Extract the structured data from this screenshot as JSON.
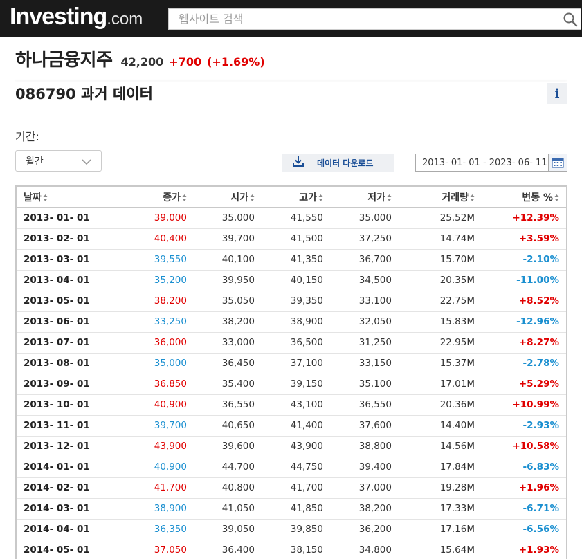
{
  "header": {
    "logo_main": "Investing",
    "logo_suffix": ".com",
    "search_placeholder": "웹사이트 검색",
    "search_icon": "search-icon"
  },
  "instrument": {
    "name": "하나금융지주",
    "price": "42,200",
    "change": "+700",
    "change_pct": "(+1.69%)"
  },
  "section": {
    "title": "086790 과거 데이터",
    "info_label": "i"
  },
  "controls": {
    "period_label": "기간:",
    "period_value": "월간",
    "download_label": "데이터 다운로드",
    "date_range": "2013- 01- 01 - 2023- 06- 11"
  },
  "colors": {
    "up": "#e00000",
    "down": "#1a8fd0",
    "link": "#1a4e96"
  },
  "table": {
    "columns": [
      "날짜",
      "종가",
      "시가",
      "고가",
      "저가",
      "거래량",
      "변동 %"
    ],
    "rows": [
      {
        "date": "2013- 01- 01",
        "close": "39,000",
        "open": "35,000",
        "high": "41,550",
        "low": "35,000",
        "volume": "25.52M",
        "change": "+12.39%",
        "dir": "up"
      },
      {
        "date": "2013- 02- 01",
        "close": "40,400",
        "open": "39,700",
        "high": "41,500",
        "low": "37,250",
        "volume": "14.74M",
        "change": "+3.59%",
        "dir": "up"
      },
      {
        "date": "2013- 03- 01",
        "close": "39,550",
        "open": "40,100",
        "high": "41,350",
        "low": "36,700",
        "volume": "15.70M",
        "change": "-2.10%",
        "dir": "down"
      },
      {
        "date": "2013- 04- 01",
        "close": "35,200",
        "open": "39,950",
        "high": "40,150",
        "low": "34,500",
        "volume": "20.35M",
        "change": "-11.00%",
        "dir": "down"
      },
      {
        "date": "2013- 05- 01",
        "close": "38,200",
        "open": "35,050",
        "high": "39,350",
        "low": "33,100",
        "volume": "22.75M",
        "change": "+8.52%",
        "dir": "up"
      },
      {
        "date": "2013- 06- 01",
        "close": "33,250",
        "open": "38,200",
        "high": "38,900",
        "low": "32,050",
        "volume": "15.83M",
        "change": "-12.96%",
        "dir": "down"
      },
      {
        "date": "2013- 07- 01",
        "close": "36,000",
        "open": "33,000",
        "high": "36,500",
        "low": "31,250",
        "volume": "22.95M",
        "change": "+8.27%",
        "dir": "up"
      },
      {
        "date": "2013- 08- 01",
        "close": "35,000",
        "open": "36,450",
        "high": "37,100",
        "low": "33,150",
        "volume": "15.37M",
        "change": "-2.78%",
        "dir": "down"
      },
      {
        "date": "2013- 09- 01",
        "close": "36,850",
        "open": "35,400",
        "high": "39,150",
        "low": "35,100",
        "volume": "17.01M",
        "change": "+5.29%",
        "dir": "up"
      },
      {
        "date": "2013- 10- 01",
        "close": "40,900",
        "open": "36,550",
        "high": "43,100",
        "low": "36,550",
        "volume": "20.36M",
        "change": "+10.99%",
        "dir": "up"
      },
      {
        "date": "2013- 11- 01",
        "close": "39,700",
        "open": "40,650",
        "high": "41,400",
        "low": "37,600",
        "volume": "14.40M",
        "change": "-2.93%",
        "dir": "down"
      },
      {
        "date": "2013- 12- 01",
        "close": "43,900",
        "open": "39,600",
        "high": "43,900",
        "low": "38,800",
        "volume": "14.56M",
        "change": "+10.58%",
        "dir": "up"
      },
      {
        "date": "2014- 01- 01",
        "close": "40,900",
        "open": "44,700",
        "high": "44,750",
        "low": "39,400",
        "volume": "17.84M",
        "change": "-6.83%",
        "dir": "down"
      },
      {
        "date": "2014- 02- 01",
        "close": "41,700",
        "open": "40,800",
        "high": "41,700",
        "low": "37,000",
        "volume": "19.28M",
        "change": "+1.96%",
        "dir": "up"
      },
      {
        "date": "2014- 03- 01",
        "close": "38,900",
        "open": "41,050",
        "high": "41,850",
        "low": "38,200",
        "volume": "17.33M",
        "change": "-6.71%",
        "dir": "down"
      },
      {
        "date": "2014- 04- 01",
        "close": "36,350",
        "open": "39,050",
        "high": "39,850",
        "low": "36,200",
        "volume": "17.16M",
        "change": "-6.56%",
        "dir": "down"
      },
      {
        "date": "2014- 05- 01",
        "close": "37,050",
        "open": "36,400",
        "high": "38,150",
        "low": "34,800",
        "volume": "15.64M",
        "change": "+1.93%",
        "dir": "up"
      }
    ]
  }
}
